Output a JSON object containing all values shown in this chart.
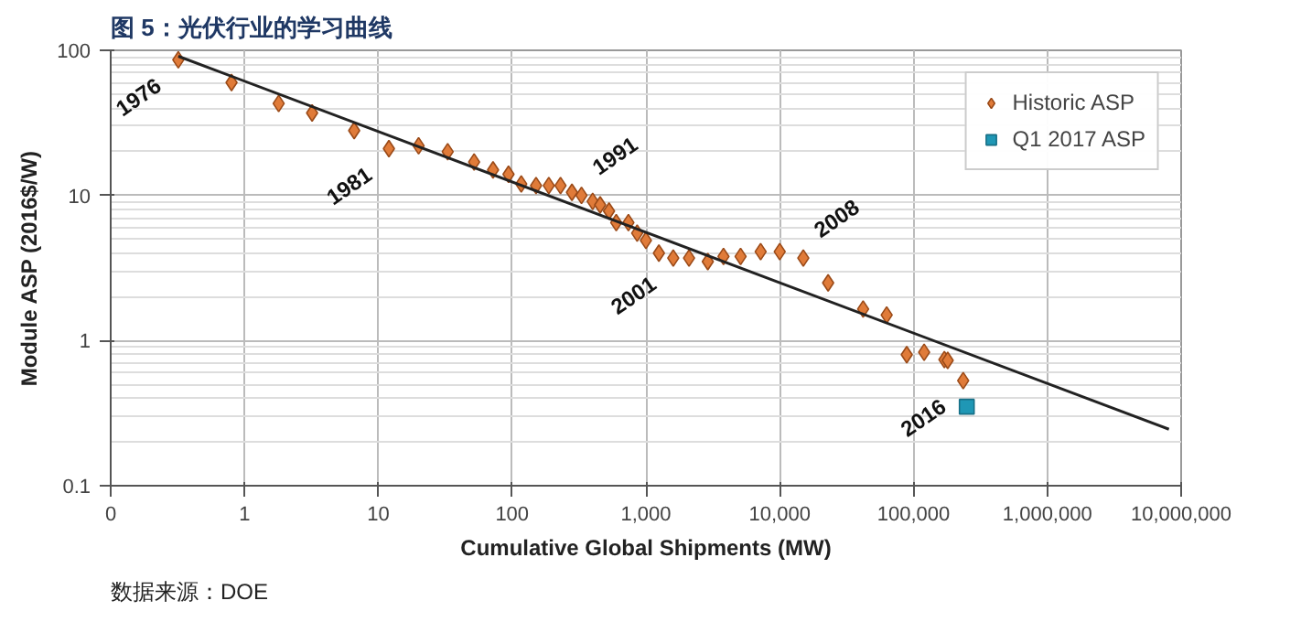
{
  "chart_data": {
    "type": "scatter",
    "title": "图 5：光伏行业的学习曲线",
    "xlabel": "Cumulative Global Shipments (MW)",
    "ylabel": "Module ASP (2016$/W)",
    "log": "xy",
    "grid": true,
    "legend": "top right",
    "xlim": [
      0.1,
      10000000
    ],
    "ylim": [
      0.1,
      100
    ],
    "xticks": [
      {
        "value": 0.1,
        "label": "0"
      },
      1,
      10,
      100,
      {
        "value": 1000,
        "label": "1,000"
      },
      {
        "value": 10000,
        "label": "10,000"
      },
      {
        "value": 100000,
        "label": "100,000"
      },
      {
        "value": 1000000,
        "label": "1,000,000"
      },
      {
        "value": 10000000,
        "label": "10,000,000"
      }
    ],
    "yticks": [
      0.1,
      1,
      10,
      100
    ],
    "series": [
      {
        "name": "Historic ASP",
        "marker": "diamond",
        "color": "#e07b39",
        "x": [
          0.32,
          0.8,
          1.8,
          3.2,
          6.6,
          12,
          20,
          33,
          52,
          72,
          94,
          117,
          151,
          188,
          230,
          280,
          330,
          400,
          455,
          530,
          600,
          740,
          860,
          1000,
          1250,
          1600,
          2100,
          2900,
          3800,
          5100,
          7200,
          10000,
          15000,
          23000,
          42000,
          63000,
          89000,
          120000,
          170000,
          180000,
          235000
        ],
        "values": [
          86,
          60,
          43,
          37,
          28,
          21,
          22,
          20,
          17,
          15,
          14,
          12,
          11.7,
          11.7,
          11.7,
          10.5,
          10,
          9.1,
          8.6,
          7.8,
          6.5,
          6.5,
          5.5,
          4.9,
          4.0,
          3.7,
          3.7,
          3.5,
          3.8,
          3.8,
          4.1,
          4.1,
          3.7,
          2.5,
          1.65,
          1.5,
          0.8,
          0.83,
          0.74,
          0.73,
          0.53
        ]
      },
      {
        "name": "Q1 2017 ASP",
        "marker": "square",
        "color": "#1f97b5",
        "x": [
          250000
        ],
        "values": [
          0.35
        ]
      },
      {
        "type": "line",
        "line_style": "solid",
        "color": "#222222",
        "x": [
          0.32,
          8100000
        ],
        "values": [
          91,
          0.245
        ]
      }
    ],
    "annotations": [
      {
        "text": "1976",
        "x": 0.32,
        "y": 86
      },
      {
        "text": "1981",
        "x": 12,
        "y": 21
      },
      {
        "text": "1991",
        "x": 330,
        "y": 10
      },
      {
        "text": "2001",
        "x": 1600,
        "y": 3.7
      },
      {
        "text": "2008",
        "x": 15000,
        "y": 3.7
      },
      {
        "text": "2016",
        "x": 235000,
        "y": 0.53
      },
      "数据来源：DOE"
    ]
  }
}
